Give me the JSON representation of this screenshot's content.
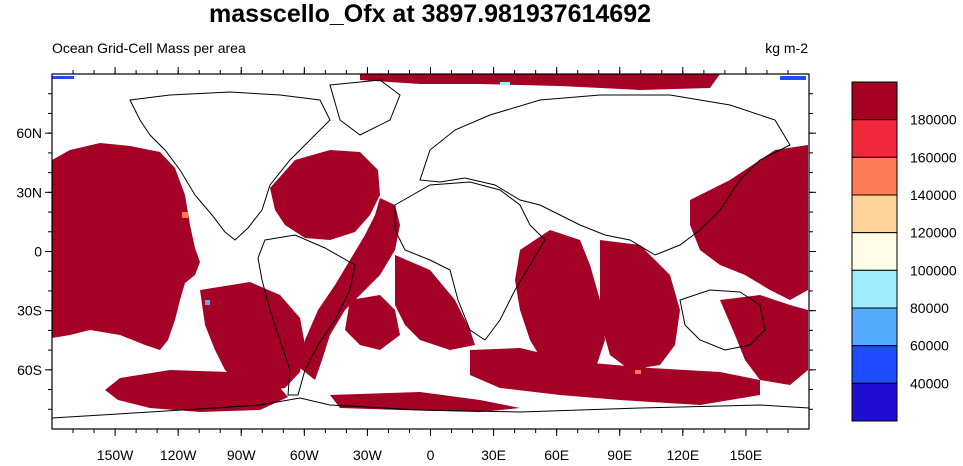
{
  "header": {
    "title": "masscello_Ofx at 3897.981937614692",
    "left_subtitle": "Ocean Grid-Cell Mass per area",
    "right_subtitle": "kg m-2"
  },
  "map": {
    "projection": "equirectangular",
    "lon_range": [
      -180,
      180
    ],
    "lat_range": [
      -90,
      90
    ],
    "lat_ticks": [
      {
        "value": 60,
        "label": "60N"
      },
      {
        "value": 30,
        "label": "30N"
      },
      {
        "value": 0,
        "label": "0"
      },
      {
        "value": -30,
        "label": "30S"
      },
      {
        "value": -60,
        "label": "60S"
      }
    ],
    "lon_ticks": [
      {
        "value": -150,
        "label": "150W"
      },
      {
        "value": -120,
        "label": "120W"
      },
      {
        "value": -90,
        "label": "90W"
      },
      {
        "value": -60,
        "label": "60W"
      },
      {
        "value": -30,
        "label": "30W"
      },
      {
        "value": 0,
        "label": "0"
      },
      {
        "value": 30,
        "label": "30E"
      },
      {
        "value": 60,
        "label": "60E"
      },
      {
        "value": 90,
        "label": "90E"
      },
      {
        "value": 120,
        "label": "120E"
      },
      {
        "value": 150,
        "label": "150E"
      }
    ],
    "fill_color": "#a50026"
  },
  "colorbar": {
    "colors": [
      "#a50021",
      "#f3273a",
      "#ff7a55",
      "#ffd29a",
      "#fffde8",
      "#9eeeff",
      "#54aaff",
      "#1e4cff",
      "#1e0ed2"
    ],
    "labels": [
      "180000",
      "160000",
      "140000",
      "120000",
      "100000",
      "80000",
      "60000",
      "40000"
    ]
  }
}
